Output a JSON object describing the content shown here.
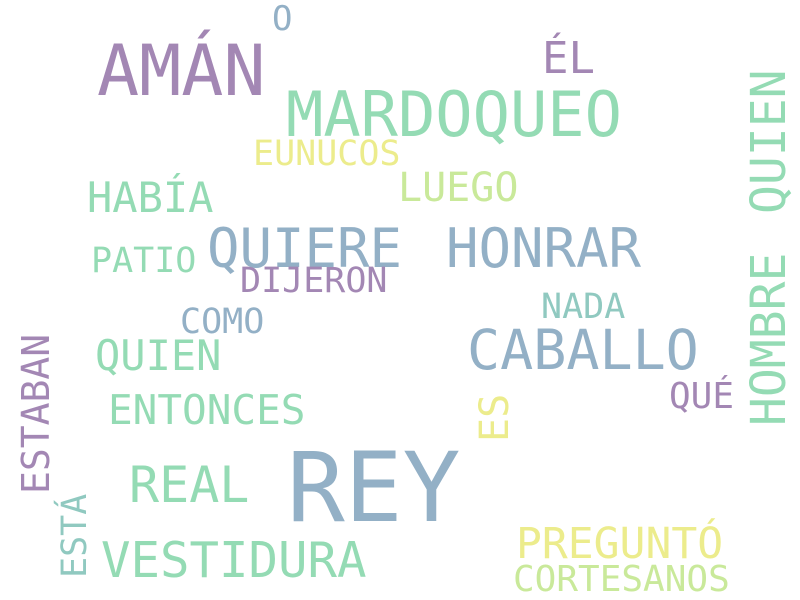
{
  "colors": {
    "purple": "#a387b4",
    "green": "#94dbb4",
    "blue": "#93b0c6",
    "yellow": "#ecec8c",
    "lime": "#c9e99a",
    "teal": "#90c9c0"
  },
  "words": [
    {
      "id": "rey",
      "text": "REY",
      "color": "blue"
    },
    {
      "id": "aman",
      "text": "AMÁN",
      "color": "purple"
    },
    {
      "id": "mardoqueo",
      "text": "MARDOQUEO",
      "color": "green"
    },
    {
      "id": "caballo",
      "text": "CABALLO",
      "color": "blue"
    },
    {
      "id": "quiere",
      "text": "QUIERE",
      "color": "blue"
    },
    {
      "id": "honrar",
      "text": "HONRAR",
      "color": "blue"
    },
    {
      "id": "hombre",
      "text": "HOMBRE",
      "color": "green"
    },
    {
      "id": "quien-vertical",
      "text": "QUIEN",
      "color": "green"
    },
    {
      "id": "vestidura",
      "text": "VESTIDURA",
      "color": "green"
    },
    {
      "id": "real",
      "text": "REAL",
      "color": "green"
    },
    {
      "id": "el",
      "text": "ÉL",
      "color": "purple"
    },
    {
      "id": "pregunto",
      "text": "PREGUNTÓ",
      "color": "yellow"
    },
    {
      "id": "entonces",
      "text": "ENTONCES",
      "color": "green"
    },
    {
      "id": "quien",
      "text": "QUIEN",
      "color": "green"
    },
    {
      "id": "habia",
      "text": "HABÍA",
      "color": "green"
    },
    {
      "id": "luego",
      "text": "LUEGO",
      "color": "lime"
    },
    {
      "id": "estaban",
      "text": "ESTABAN",
      "color": "purple"
    },
    {
      "id": "cortesanos",
      "text": "CORTESANOS",
      "color": "lime"
    },
    {
      "id": "eunucos",
      "text": "EUNUCOS",
      "color": "yellow"
    },
    {
      "id": "dijeron",
      "text": "DIJERON",
      "color": "purple"
    },
    {
      "id": "es",
      "text": "ES",
      "color": "yellow"
    },
    {
      "id": "patio",
      "text": "PATIO",
      "color": "green"
    },
    {
      "id": "como",
      "text": "COMO",
      "color": "blue"
    },
    {
      "id": "nada",
      "text": "NADA",
      "color": "teal"
    },
    {
      "id": "que",
      "text": "QUÉ",
      "color": "purple"
    },
    {
      "id": "esta",
      "text": "ESTÁ",
      "color": "teal"
    },
    {
      "id": "o",
      "text": "O",
      "color": "blue"
    }
  ]
}
